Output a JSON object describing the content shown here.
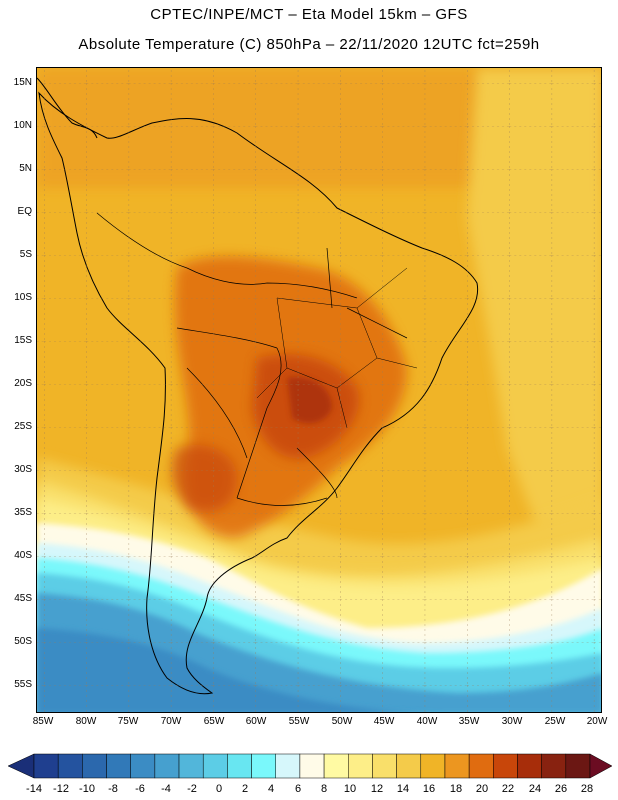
{
  "title": {
    "line1": "CPTEC/INPE/MCT –  Eta Model 15km – GFS",
    "line2": "Absolute Temperature (C) 850hPa – 22/11/2020 12UTC fct=259h"
  },
  "map": {
    "variable": "Absolute Temperature",
    "units": "C",
    "level": "850hPa",
    "lat_labels": [
      "15N",
      "10N",
      "5N",
      "EQ",
      "5S",
      "10S",
      "15S",
      "20S",
      "25S",
      "30S",
      "35S",
      "40S",
      "45S",
      "50S",
      "55S"
    ],
    "lon_labels": [
      "85W",
      "80W",
      "75W",
      "70W",
      "65W",
      "60W",
      "55W",
      "50W",
      "45W",
      "40W",
      "35W",
      "30W",
      "25W",
      "20W"
    ]
  },
  "colorbar": {
    "labels": [
      "-14",
      "-12",
      "-10",
      "-8",
      "-6",
      "-4",
      "-2",
      "0",
      "2",
      "4",
      "6",
      "8",
      "10",
      "12",
      "14",
      "16",
      "18",
      "20",
      "22",
      "24",
      "26",
      "28"
    ],
    "colors": [
      "#1f3f8f",
      "#24539f",
      "#2b68ad",
      "#3179b8",
      "#3b8cc4",
      "#46a0cf",
      "#52b6da",
      "#5ccde6",
      "#68e6f1",
      "#7af8fb",
      "#d6f7fb",
      "#fffbe8",
      "#fffaa3",
      "#fdee88",
      "#f9df6a",
      "#f4cb4a",
      "#f0b427",
      "#ec9620",
      "#e06c10",
      "#c8460a",
      "#a72d0a",
      "#882210",
      "#6b1713"
    ],
    "end_left_color": "#1a2f78",
    "end_right_color": "#6b0c22"
  }
}
